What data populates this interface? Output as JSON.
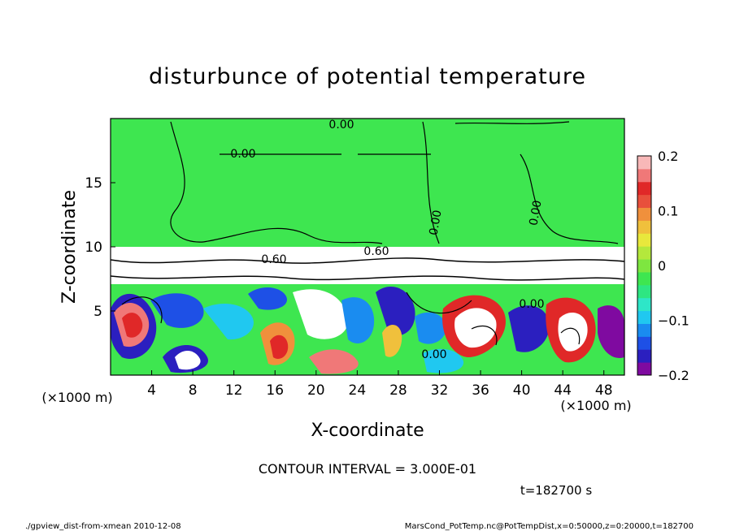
{
  "chart_data": {
    "type": "heatmap",
    "title": "disturbunce of potential temperature",
    "xlabel": "X-coordinate",
    "ylabel": "Z-coordinate",
    "x_unit_left": "(×1000 m)",
    "x_unit_right": "(×1000 m)",
    "xlim": [
      0,
      50
    ],
    "ylim": [
      0,
      20
    ],
    "x_ticks": [
      4,
      8,
      12,
      16,
      20,
      24,
      28,
      32,
      36,
      40,
      44,
      48
    ],
    "y_ticks": [
      5,
      10,
      15
    ],
    "colorbar": {
      "range": [
        -0.2,
        0.2
      ],
      "tick_values": [
        0.2,
        0.1,
        0,
        -0.1,
        -0.2
      ],
      "tick_labels": [
        "0.2",
        "0.1",
        "0",
        "−0.1",
        "−0.2"
      ],
      "colors": [
        "#7f0aa0",
        "#2b1fbf",
        "#1e50e6",
        "#1a8cf0",
        "#20c8f0",
        "#2ee6c8",
        "#2ee682",
        "#3ee650",
        "#7ee640",
        "#b4e83c",
        "#e8e83c",
        "#f0c03c",
        "#f0903c",
        "#e8503c",
        "#e02828",
        "#f07878",
        "#f8b8b8"
      ]
    },
    "contour_labels": [
      "0.00",
      "0.00",
      "0.60",
      "0.60",
      "0.00",
      "0.00",
      "0.00",
      "0.00"
    ],
    "contour_interval_text": "CONTOUR INTERVAL = 3.000E-01",
    "time_text": "t=182700 s"
  },
  "footer": {
    "left": "./gpview_dist-from-xmean  2010-12-08",
    "right": "MarsCond_PotTemp.nc@PotTempDist,x=0:50000,z=0:20000,t=182700"
  },
  "colors": {
    "background_field": "#3ee650",
    "zero_green": "#3ee650"
  }
}
